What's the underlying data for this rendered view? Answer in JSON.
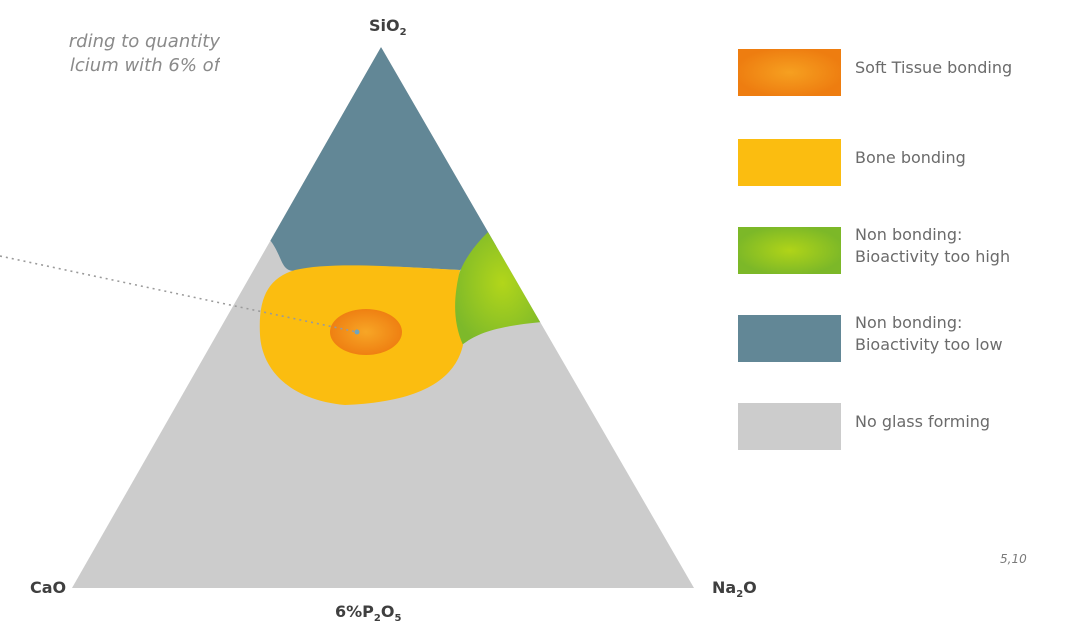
{
  "note": {
    "line1": "rding to quantity",
    "line2": "lcium with 6% of"
  },
  "vertices": {
    "top": {
      "base": "SiO",
      "sub": "2"
    },
    "left": {
      "base": "CaO",
      "sub": ""
    },
    "right": {
      "base": "Na",
      "sub": "2",
      "suffix": "O"
    },
    "bottom": {
      "prefix": "6%P",
      "sub1": "2",
      "mid": "O",
      "sub2": "5"
    }
  },
  "legend": [
    {
      "label": "Soft Tissue bonding",
      "color": "#f08a10",
      "style": "radial",
      "center": "#f6a020",
      "edge": "#ee7d10",
      "icon": "orange-swatch"
    },
    {
      "label": "Bone bonding",
      "color": "#fbbd10",
      "style": "solid",
      "icon": "yellow-swatch"
    },
    {
      "label": "Non bonding:\nBioactivity too high",
      "color": "#8cc320",
      "style": "radial",
      "center": "#b0d418",
      "edge": "#7cb828",
      "icon": "green-swatch"
    },
    {
      "label": "Non bonding:\nBioactivity too low",
      "color": "#628796",
      "style": "solid",
      "icon": "blue-gray-swatch"
    },
    {
      "label": "No glass forming",
      "color": "#cccccc",
      "style": "solid",
      "icon": "gray-swatch"
    }
  ],
  "page_ref": "5,10"
}
